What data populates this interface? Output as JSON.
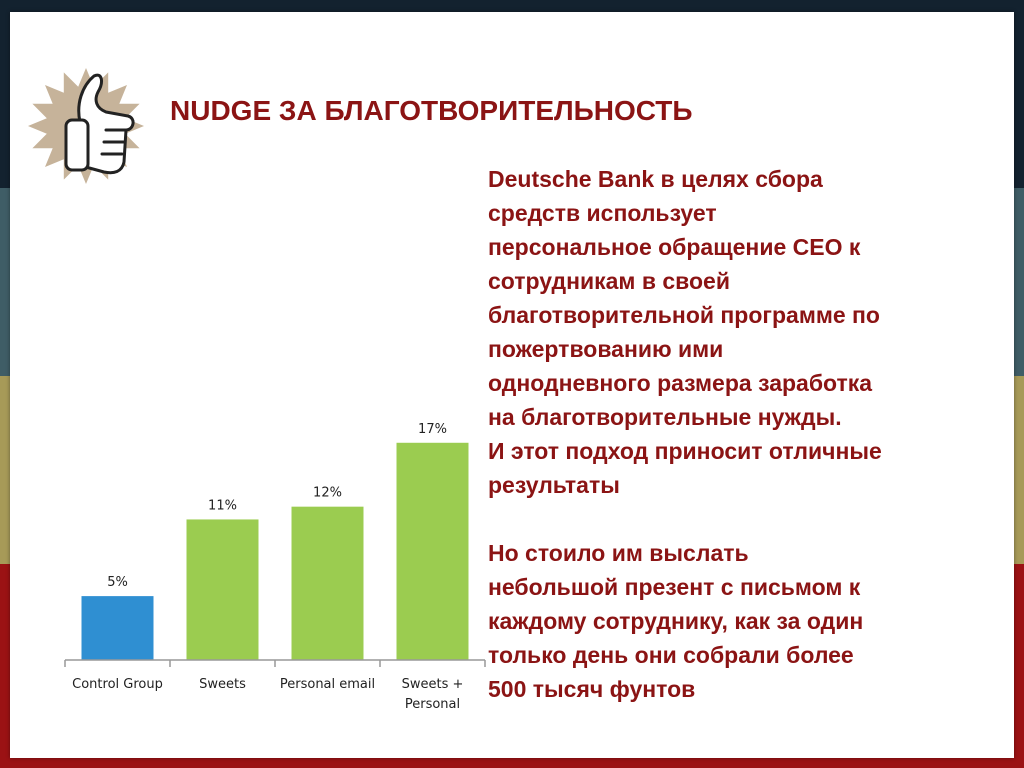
{
  "colors": {
    "band_top": "#13222f",
    "band_teal": "#3f5d66",
    "band_olive": "#a79a58",
    "band_red": "#9b1214",
    "accent": "#8b1414",
    "logo_burst": "#c6b39a",
    "bar_blue": "#2f8fd2",
    "bar_green": "#9bcc50"
  },
  "slide": {
    "title": "NUDGE ЗА БЛАГОТВОРИТЕЛЬНОСТЬ",
    "logo_icon": "thumbs-up-icon",
    "body_lines": [
      "Deutsche Bank в целях сбора",
      "средств использует",
      "персональное обращение СЕО к",
      "сотрудникам в своей",
      "благотворительной программе по",
      "пожертвованию ими",
      "однодневного размера заработка",
      "на благотворительные нужды.",
      "И этот подход приносит отличные",
      "результаты"
    ],
    "body_lines_2": [
      "Но стоило им выслать",
      "небольшой презент с письмом к",
      "каждому сотруднику, как за один",
      "только день они собрали более",
      "500 тысяч фунтов"
    ]
  },
  "chart_data": {
    "type": "bar",
    "title": "",
    "xlabel": "",
    "ylabel": "",
    "categories": [
      [
        "Control Group"
      ],
      [
        "Sweets"
      ],
      [
        "Personal email"
      ],
      [
        "Sweets +",
        "Personal"
      ]
    ],
    "values": [
      5,
      11,
      12,
      17
    ],
    "data_labels": [
      "5%",
      "11%",
      "12%",
      "17%"
    ],
    "bar_colors": [
      "#2f8fd2",
      "#9bcc50",
      "#9bcc50",
      "#9bcc50"
    ],
    "ylim": [
      0,
      18
    ],
    "grid": false,
    "legend": "none"
  }
}
